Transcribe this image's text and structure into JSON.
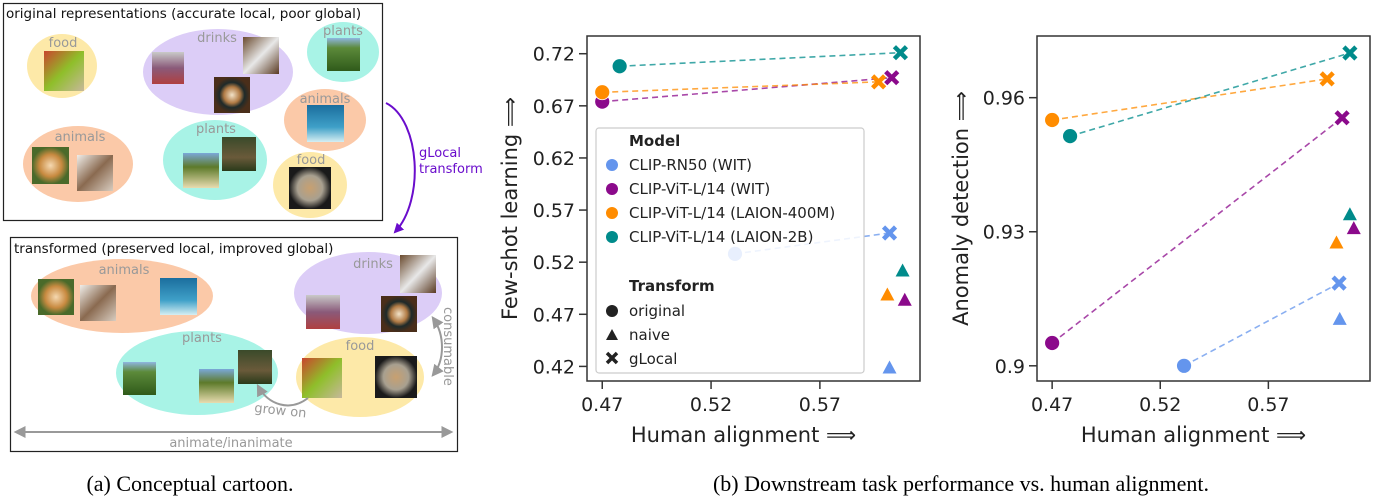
{
  "cartoon": {
    "top_title": "original representations (accurate local, poor global)",
    "bottom_title": "transformed (preserved local, improved global)",
    "transform_label_1": "gLocal",
    "transform_label_2": "transform",
    "consumable": "consumable",
    "grow_on": "grow on",
    "animate_axis": "animate/inanimate",
    "labels": {
      "food": "food",
      "drinks": "drinks",
      "plants": "plants",
      "animals": "animals"
    },
    "colors": {
      "food": "#fde9a8",
      "drinks": "#dccdf7",
      "plants": "#a8f3e6",
      "animals": "#fbc9a8",
      "arrow": "#6a0dcc"
    }
  },
  "captions": {
    "a": "(a) Conceptual cartoon.",
    "b": "(b) Downstream task performance vs. human alignment."
  },
  "legend": {
    "model_title": "Model",
    "models": [
      "CLIP-RN50 (WIT)",
      "CLIP-ViT-L/14 (WIT)",
      "CLIP-ViT-L/14 (LAION-400M)",
      "CLIP-ViT-L/14 (LAION-2B)"
    ],
    "transform_title": "Transform",
    "transforms": [
      "original",
      "naive",
      "gLocal"
    ]
  },
  "chart_data": [
    {
      "type": "scatter",
      "xlabel": "Human alignment ⟹",
      "ylabel": "Few-shot learning ⟹",
      "xlim": [
        0.463,
        0.616
      ],
      "ylim": [
        0.406,
        0.737
      ],
      "xticks": [
        "0.47",
        "0.52",
        "0.57"
      ],
      "yticks": [
        "0.42",
        "0.47",
        "0.52",
        "0.57",
        "0.62",
        "0.67",
        "0.72"
      ],
      "grid": false,
      "legend": "center-left",
      "series": [
        {
          "name": "CLIP-RN50 (WIT)",
          "color": "#6495ed",
          "original": [
            0.531,
            0.528
          ],
          "naive": [
            0.602,
            0.419
          ],
          "gLocal": [
            0.602,
            0.548
          ]
        },
        {
          "name": "CLIP-ViT-L/14 (WIT)",
          "color": "#8b0a8b",
          "original": [
            0.47,
            0.674
          ],
          "naive": [
            0.609,
            0.484
          ],
          "gLocal": [
            0.603,
            0.697
          ]
        },
        {
          "name": "CLIP-ViT-L/14 (LAION-400M)",
          "color": "#ff8c00",
          "original": [
            0.47,
            0.683
          ],
          "naive": [
            0.601,
            0.489
          ],
          "gLocal": [
            0.597,
            0.693
          ]
        },
        {
          "name": "CLIP-ViT-L/14 (LAION-2B)",
          "color": "#008b8b",
          "original": [
            0.478,
            0.708
          ],
          "naive": [
            0.608,
            0.512
          ],
          "gLocal": [
            0.607,
            0.721
          ]
        }
      ]
    },
    {
      "type": "scatter",
      "xlabel": "Human alignment ⟹",
      "ylabel": "Anomaly detection ⟹",
      "xlim": [
        0.463,
        0.617
      ],
      "ylim": [
        0.8966,
        0.9738
      ],
      "xticks": [
        "0.47",
        "0.52",
        "0.57"
      ],
      "yticks": [
        "0.9",
        "0.93",
        "0.96"
      ],
      "grid": false,
      "series": [
        {
          "name": "CLIP-RN50 (WIT)",
          "color": "#6495ed",
          "original": [
            0.531,
            0.9
          ],
          "naive": [
            0.603,
            0.9105
          ],
          "gLocal": [
            0.6027,
            0.9185
          ]
        },
        {
          "name": "CLIP-ViT-L/14 (WIT)",
          "color": "#8b0a8b",
          "original": [
            0.47,
            0.9051
          ],
          "naive": [
            0.6095,
            0.9308
          ],
          "gLocal": [
            0.6041,
            0.9555
          ]
        },
        {
          "name": "CLIP-ViT-L/14 (LAION-400M)",
          "color": "#ff8c00",
          "original": [
            0.47,
            0.955
          ],
          "naive": [
            0.6015,
            0.9276
          ],
          "gLocal": [
            0.5972,
            0.9642
          ]
        },
        {
          "name": "CLIP-ViT-L/14 (LAION-2B)",
          "color": "#008b8b",
          "original": [
            0.4783,
            0.9514
          ],
          "naive": [
            0.6077,
            0.9339
          ],
          "gLocal": [
            0.6077,
            0.97
          ]
        }
      ]
    }
  ]
}
